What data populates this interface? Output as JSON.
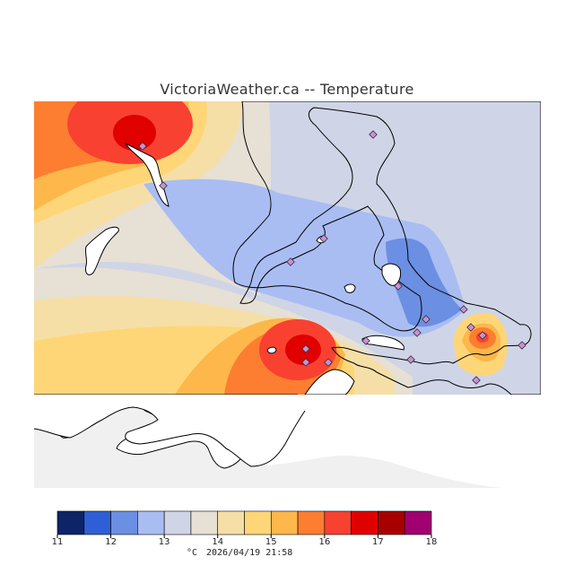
{
  "title": "VictoriaWeather.ca -- Temperature",
  "legend": {
    "unit": "°C",
    "timestamp": "2026/04/19 21:58",
    "ticks": [
      "11",
      "12",
      "13",
      "14",
      "15",
      "16",
      "17",
      "18"
    ],
    "bins": [
      {
        "from": 11.0,
        "to": 11.5,
        "color": "#0d2466"
      },
      {
        "from": 11.5,
        "to": 12.0,
        "color": "#2f5fd6"
      },
      {
        "from": 12.0,
        "to": 12.5,
        "color": "#6b8fe2"
      },
      {
        "from": 12.5,
        "to": 13.0,
        "color": "#a9bdf2"
      },
      {
        "from": 13.0,
        "to": 13.5,
        "color": "#cfd5e6"
      },
      {
        "from": 13.5,
        "to": 14.0,
        "color": "#e6e0d5"
      },
      {
        "from": 14.0,
        "to": 14.5,
        "color": "#f5dfa7"
      },
      {
        "from": 14.5,
        "to": 15.0,
        "color": "#fed677"
      },
      {
        "from": 15.0,
        "to": 15.5,
        "color": "#fdb74a"
      },
      {
        "from": 15.5,
        "to": 16.0,
        "color": "#fd7e31"
      },
      {
        "from": 16.0,
        "to": 16.5,
        "color": "#f94132"
      },
      {
        "from": 16.5,
        "to": 17.0,
        "color": "#e00000"
      },
      {
        "from": 17.0,
        "to": 17.5,
        "color": "#a80000"
      },
      {
        "from": 17.5,
        "to": 18.0,
        "color": "#a00070"
      }
    ]
  },
  "colors": {
    "land_background": "#f0f0f0",
    "coastline": "#000000",
    "station_marker": "#c98fd6"
  }
}
